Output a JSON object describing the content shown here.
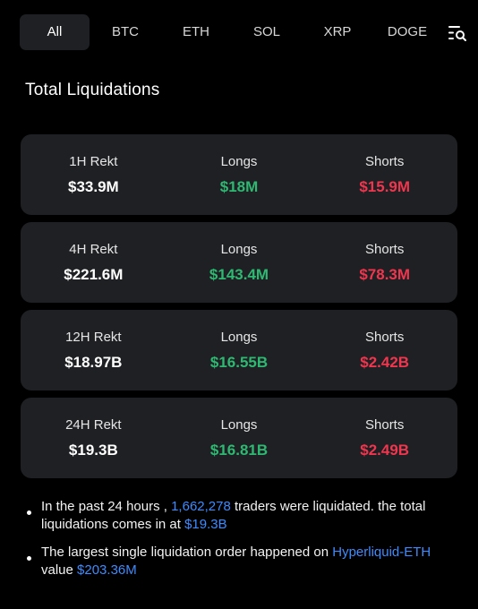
{
  "tabs": [
    "All",
    "BTC",
    "ETH",
    "SOL",
    "XRP",
    "DOGE"
  ],
  "active_tab": "All",
  "filter_icon": "filter-search-icon",
  "section_title": "Total Liquidations",
  "colors": {
    "background": "#000000",
    "card": "#1e2023",
    "longs_green": "#2eb872",
    "shorts_red": "#f0364e",
    "highlight_blue": "#3d8bfd"
  },
  "cards": [
    {
      "rekt_label": "1H  Rekt",
      "rekt_value": "$33.9M",
      "longs_label": "Longs",
      "longs_value": "$18M",
      "shorts_label": "Shorts",
      "shorts_value": "$15.9M"
    },
    {
      "rekt_label": "4H Rekt",
      "rekt_value": "$221.6M",
      "longs_label": "Longs",
      "longs_value": "$143.4M",
      "shorts_label": "Shorts",
      "shorts_value": "$78.3M"
    },
    {
      "rekt_label": "12H Rekt",
      "rekt_value": "$18.97B",
      "longs_label": "Longs",
      "longs_value": "$16.55B",
      "shorts_label": "Shorts",
      "shorts_value": "$2.42B"
    },
    {
      "rekt_label": "24H Rekt",
      "rekt_value": "$19.3B",
      "longs_label": "Longs",
      "longs_value": "$16.81B",
      "shorts_label": "Shorts",
      "shorts_value": "$2.49B"
    }
  ],
  "notes": {
    "note1": {
      "pre": "In the past 24 hours , ",
      "traders_count": "1,662,278",
      "mid": " traders were liquidated. the total liquidations comes in at ",
      "total": "$19.3B"
    },
    "note2": {
      "pre": "The largest single liquidation order happened on ",
      "exchange_pair": "Hyperliquid-ETH",
      "mid": " value ",
      "value": "$203.36M"
    }
  }
}
